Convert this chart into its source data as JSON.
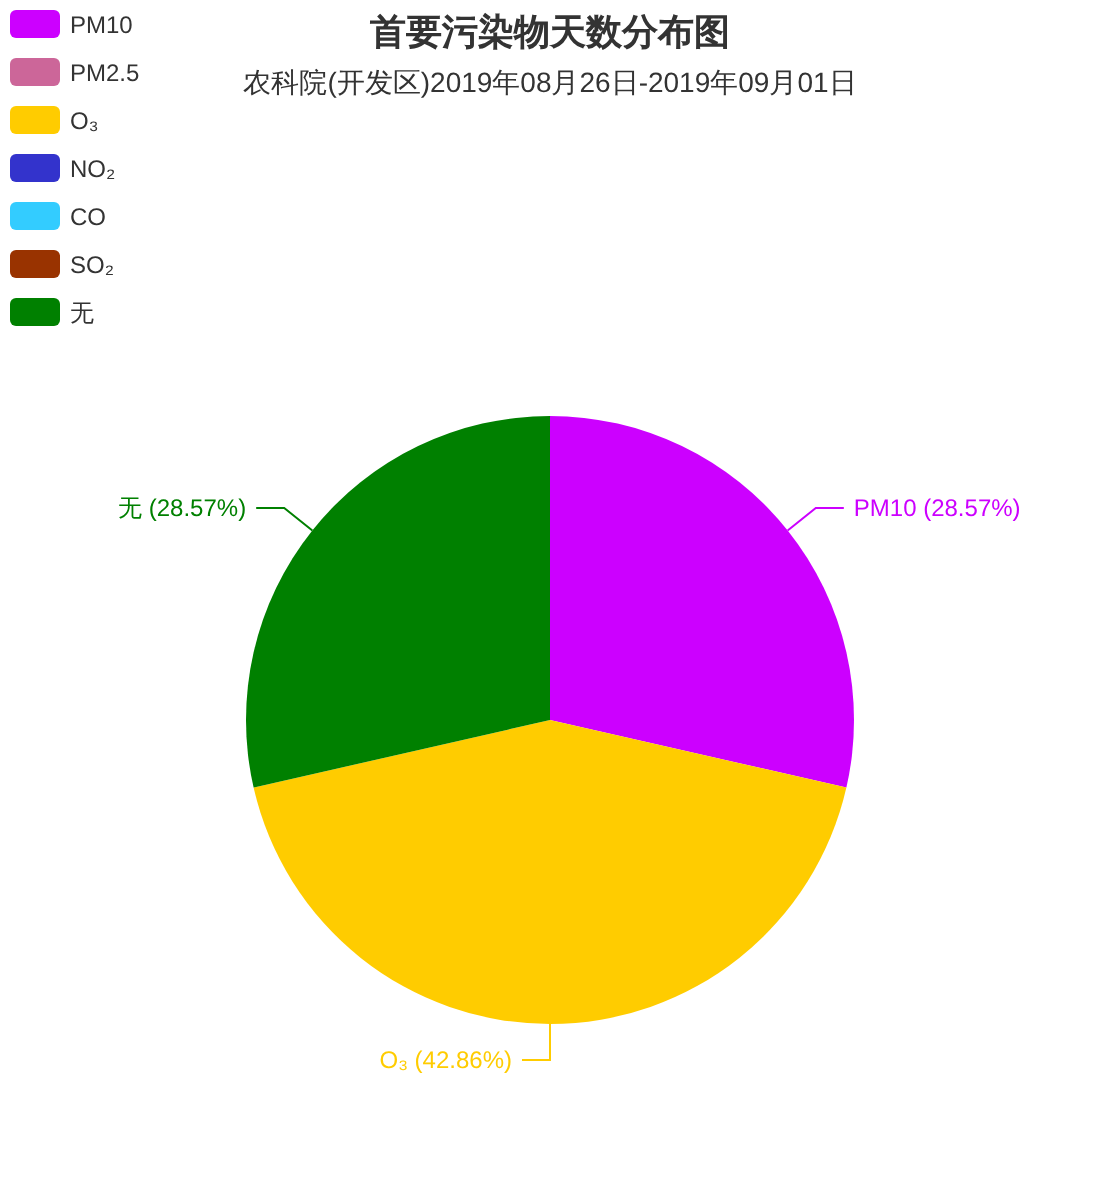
{
  "chart_data": {
    "type": "pie",
    "title": "首要污染物天数分布图",
    "subtitle": "农科院(开发区)2019年08月26日-2019年09月01日",
    "categories": [
      "PM10",
      "PM2.5",
      "O₃",
      "NO₂",
      "CO",
      "SO₂",
      "无"
    ],
    "values": [
      28.57,
      0,
      42.86,
      0,
      0,
      0,
      28.57
    ],
    "colors": [
      "#cc00ff",
      "#cc6699",
      "#ffcc00",
      "#3333cc",
      "#33ccff",
      "#993300",
      "#008000"
    ],
    "value_labels": [
      "PM10 (28.57%)",
      null,
      "O₃ (42.86%)",
      null,
      null,
      null,
      "无 (28.57%)"
    ],
    "legend": "top left"
  }
}
